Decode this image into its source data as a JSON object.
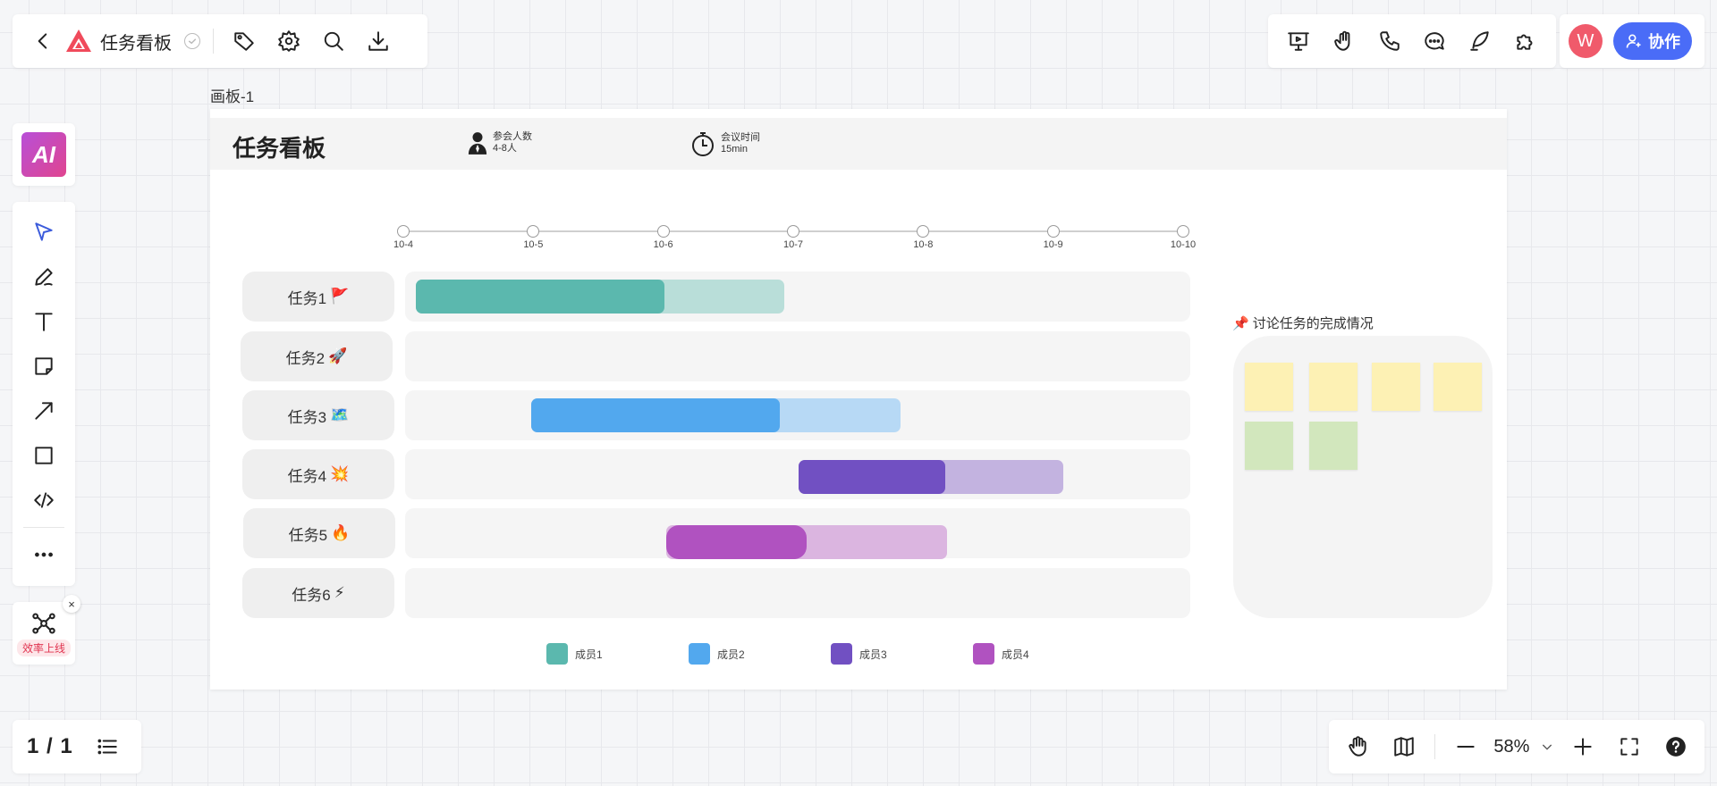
{
  "topbar": {
    "title": "任务看板"
  },
  "collab": {
    "avatar_letter": "W",
    "button_label": "协作"
  },
  "ai": {
    "label": "AI"
  },
  "promo": {
    "label": "效率上线",
    "close": "×"
  },
  "pager": {
    "indicator": "1 / 1"
  },
  "zoom": {
    "value": "58%"
  },
  "board": {
    "label": "画板-1",
    "title": "任务看板",
    "attendees": {
      "label": "参会人数",
      "value": "4-8人"
    },
    "duration": {
      "label": "会议时间",
      "value": "15min"
    },
    "timeline": [
      "10-4",
      "10-5",
      "10-6",
      "10-7",
      "10-8",
      "10-9",
      "10-10"
    ],
    "tasks": [
      {
        "label": "任务1",
        "emoji": "🚩"
      },
      {
        "label": "任务2",
        "emoji": "🚀"
      },
      {
        "label": "任务3",
        "emoji": "🗺️"
      },
      {
        "label": "任务4",
        "emoji": "💥"
      },
      {
        "label": "任务5",
        "emoji": "🔥"
      },
      {
        "label": "任务6",
        "emoji": "⚡"
      }
    ],
    "legend": [
      {
        "label": "成员1",
        "color": "#5bb8ae"
      },
      {
        "label": "成员2",
        "color": "#52a8ee"
      },
      {
        "label": "成员3",
        "color": "#7150c2"
      },
      {
        "label": "成员4",
        "color": "#b052c0"
      }
    ],
    "discussion": {
      "pin": "📌",
      "title": "讨论任务的完成情况"
    },
    "sticky_colors": {
      "yellow": "#fdf1b4",
      "green": "#d2e7bd"
    }
  }
}
